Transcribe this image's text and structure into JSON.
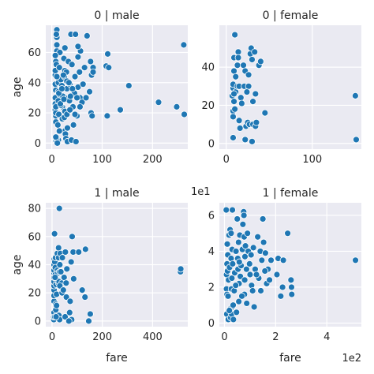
{
  "chart_data": [
    {
      "type": "scatter",
      "title": "0 | male",
      "xlabel": "",
      "ylabel": "age",
      "xlim": [
        -12,
        270
      ],
      "ylim": [
        -4,
        78
      ],
      "xticks": [
        0,
        100,
        200
      ],
      "xtick_labels": [
        "0",
        "100",
        "200"
      ],
      "yticks": [
        0,
        20,
        40,
        60
      ],
      "ytick_labels": [
        "0",
        "20",
        "40",
        "60"
      ],
      "x_offset_label": "",
      "y_offset_label": "",
      "grid": true,
      "points": [
        [
          7,
          22
        ],
        [
          8,
          35
        ],
        [
          8,
          54
        ],
        [
          8,
          2
        ],
        [
          8,
          27
        ],
        [
          7,
          39
        ],
        [
          13,
          2
        ],
        [
          8,
          14
        ],
        [
          8,
          18
        ],
        [
          8,
          20
        ],
        [
          7,
          30
        ],
        [
          7,
          45
        ],
        [
          9,
          52
        ],
        [
          10,
          61
        ],
        [
          10,
          70
        ],
        [
          10,
          75
        ],
        [
          10,
          65
        ],
        [
          7,
          48
        ],
        [
          7,
          26
        ],
        [
          8,
          24
        ],
        [
          13,
          34
        ],
        [
          13,
          40
        ],
        [
          14,
          19
        ],
        [
          13,
          28
        ],
        [
          15,
          50
        ],
        [
          16,
          60
        ],
        [
          16,
          32
        ],
        [
          18,
          42
        ],
        [
          20,
          38
        ],
        [
          21,
          16
        ],
        [
          21,
          24
        ],
        [
          24,
          56
        ],
        [
          25,
          44
        ],
        [
          26,
          48
        ],
        [
          26,
          63
        ],
        [
          26,
          30
        ],
        [
          26,
          21
        ],
        [
          26,
          8
        ],
        [
          27,
          6
        ],
        [
          28,
          3
        ],
        [
          29,
          47
        ],
        [
          30,
          36
        ],
        [
          30,
          41
        ],
        [
          31,
          1
        ],
        [
          31,
          10
        ],
        [
          33,
          54
        ],
        [
          35,
          28
        ],
        [
          36,
          39
        ],
        [
          38,
          72
        ],
        [
          39,
          2
        ],
        [
          40,
          52
        ],
        [
          42,
          24
        ],
        [
          45,
          33
        ],
        [
          46,
          44
        ],
        [
          47,
          72
        ],
        [
          48,
          1
        ],
        [
          50,
          18
        ],
        [
          52,
          57
        ],
        [
          52,
          37
        ],
        [
          55,
          47
        ],
        [
          56,
          30
        ],
        [
          57,
          61
        ],
        [
          60,
          27
        ],
        [
          62,
          39
        ],
        [
          65,
          50
        ],
        [
          68,
          30
        ],
        [
          70,
          71
        ],
        [
          75,
          34
        ],
        [
          77,
          54
        ],
        [
          78,
          20
        ],
        [
          79,
          45
        ],
        [
          80,
          18
        ],
        [
          82,
          50
        ],
        [
          82,
          47
        ],
        [
          110,
          18
        ],
        [
          108,
          51
        ],
        [
          111,
          59
        ],
        [
          113,
          50
        ],
        [
          136,
          22
        ],
        [
          153,
          38
        ],
        [
          212,
          27
        ],
        [
          248,
          24
        ],
        [
          262,
          65
        ],
        [
          263,
          19
        ],
        [
          7,
          58
        ],
        [
          9,
          3
        ],
        [
          8,
          4
        ],
        [
          11,
          0
        ],
        [
          12,
          12
        ],
        [
          15,
          8
        ],
        [
          18,
          25
        ],
        [
          22,
          31
        ],
        [
          23,
          45
        ],
        [
          25,
          17
        ],
        [
          30,
          19
        ],
        [
          34,
          40
        ],
        [
          36,
          22
        ],
        [
          37,
          31
        ],
        [
          41,
          36
        ],
        [
          43,
          12
        ],
        [
          46,
          19
        ],
        [
          50,
          30
        ],
        [
          52,
          64
        ],
        [
          56,
          24
        ],
        [
          9,
          72
        ],
        [
          10,
          44
        ],
        [
          14,
          33
        ],
        [
          17,
          26
        ],
        [
          20,
          36
        ],
        [
          24,
          29
        ]
      ]
    },
    {
      "type": "scatter",
      "title": "0 | female",
      "xlabel": "",
      "ylabel": "",
      "xlim": [
        -8,
        157
      ],
      "ylim": [
        -3,
        62
      ],
      "xticks": [
        0,
        100
      ],
      "xtick_labels": [
        "0",
        "100"
      ],
      "yticks": [
        0,
        20,
        40
      ],
      "ytick_labels": [
        "0",
        "20",
        "40"
      ],
      "x_offset_label": "",
      "y_offset_label": "",
      "grid": true,
      "points": [
        [
          7,
          25
        ],
        [
          8,
          17
        ],
        [
          8,
          29
        ],
        [
          8,
          31
        ],
        [
          8,
          14
        ],
        [
          8,
          3
        ],
        [
          9,
          38
        ],
        [
          9,
          22
        ],
        [
          9,
          45
        ],
        [
          10,
          57
        ],
        [
          10,
          18
        ],
        [
          11,
          27
        ],
        [
          13,
          41
        ],
        [
          13,
          30
        ],
        [
          14,
          48
        ],
        [
          14,
          45
        ],
        [
          15,
          30
        ],
        [
          16,
          8
        ],
        [
          17,
          24
        ],
        [
          18,
          21
        ],
        [
          20,
          41
        ],
        [
          21,
          30
        ],
        [
          22,
          2
        ],
        [
          22,
          38
        ],
        [
          23,
          9
        ],
        [
          25,
          11
        ],
        [
          26,
          30
        ],
        [
          26,
          36
        ],
        [
          27,
          10
        ],
        [
          28,
          47
        ],
        [
          29,
          50
        ],
        [
          30,
          1
        ],
        [
          30,
          44
        ],
        [
          31,
          10
        ],
        [
          31,
          22
        ],
        [
          33,
          48
        ],
        [
          34,
          9
        ],
        [
          34,
          26
        ],
        [
          35,
          11
        ],
        [
          38,
          41
        ],
        [
          40,
          43
        ],
        [
          45,
          16
        ],
        [
          150,
          25
        ],
        [
          151,
          2
        ],
        [
          9,
          26
        ],
        [
          11,
          35
        ],
        [
          15,
          12
        ],
        [
          24,
          27
        ]
      ]
    },
    {
      "type": "scatter",
      "title": "1 | male",
      "xlabel": "fare",
      "ylabel": "age",
      "xlim": [
        -25,
        540
      ],
      "ylim": [
        -4,
        84
      ],
      "xticks": [
        0,
        200,
        400
      ],
      "xtick_labels": [
        "0",
        "200",
        "400"
      ],
      "yticks": [
        0,
        20,
        40,
        60,
        80
      ],
      "ytick_labels": [
        "0",
        "20",
        "40",
        "60",
        "80"
      ],
      "x_offset_label": "",
      "y_offset_label": "",
      "grid": true,
      "points": [
        [
          7,
          1
        ],
        [
          7,
          3
        ],
        [
          8,
          6
        ],
        [
          8,
          14
        ],
        [
          8,
          18
        ],
        [
          8,
          22
        ],
        [
          8,
          25
        ],
        [
          8,
          28
        ],
        [
          8,
          31
        ],
        [
          8,
          34
        ],
        [
          8,
          36
        ],
        [
          8,
          40
        ],
        [
          9,
          44
        ],
        [
          10,
          62
        ],
        [
          11,
          42
        ],
        [
          13,
          33
        ],
        [
          13,
          38
        ],
        [
          14,
          45
        ],
        [
          15,
          8
        ],
        [
          15,
          12
        ],
        [
          16,
          26
        ],
        [
          18,
          19
        ],
        [
          20,
          29
        ],
        [
          21,
          48
        ],
        [
          22,
          36
        ],
        [
          24,
          34
        ],
        [
          26,
          27
        ],
        [
          26,
          52
        ],
        [
          26,
          45
        ],
        [
          27,
          4
        ],
        [
          28,
          28
        ],
        [
          29,
          80
        ],
        [
          30,
          1
        ],
        [
          30,
          35
        ],
        [
          31,
          40
        ],
        [
          33,
          48
        ],
        [
          35,
          35
        ],
        [
          39,
          27
        ],
        [
          40,
          20
        ],
        [
          41,
          45
        ],
        [
          48,
          31
        ],
        [
          52,
          3
        ],
        [
          53,
          49
        ],
        [
          56,
          27
        ],
        [
          57,
          17
        ],
        [
          59,
          37
        ],
        [
          70,
          6
        ],
        [
          72,
          14
        ],
        [
          76,
          42
        ],
        [
          78,
          1
        ],
        [
          80,
          60
        ],
        [
          84,
          49
        ],
        [
          86,
          30
        ],
        [
          106,
          49
        ],
        [
          120,
          22
        ],
        [
          131,
          17
        ],
        [
          133,
          51
        ],
        [
          146,
          0
        ],
        [
          152,
          5
        ],
        [
          511,
          35
        ],
        [
          512,
          37
        ],
        [
          11,
          3
        ],
        [
          12,
          31
        ],
        [
          16,
          3
        ],
        [
          18,
          11
        ],
        [
          31,
          25
        ],
        [
          45,
          22
        ],
        [
          67,
          0
        ]
      ]
    },
    {
      "type": "scatter",
      "title": "1 | female",
      "xlabel": "fare",
      "ylabel": "",
      "xlim": [
        -0.2,
        5.35
      ],
      "ylim": [
        -0.2,
        6.7
      ],
      "xticks": [
        0,
        2,
        4
      ],
      "xtick_labels": [
        "0",
        "2",
        "4"
      ],
      "yticks": [
        0,
        2,
        4,
        6
      ],
      "ytick_labels": [
        "0",
        "2",
        "4",
        "6"
      ],
      "x_offset_label": "1e2",
      "y_offset_label": "1e1",
      "grid": true,
      "points": [
        [
          0.07,
          6.3
        ],
        [
          0.08,
          2.7
        ],
        [
          0.08,
          1.9
        ],
        [
          0.09,
          0.5
        ],
        [
          0.1,
          3.3
        ],
        [
          0.1,
          1.6
        ],
        [
          0.11,
          4.4
        ],
        [
          0.12,
          2.9
        ],
        [
          0.13,
          3.8
        ],
        [
          0.14,
          1.5
        ],
        [
          0.15,
          0.2
        ],
        [
          0.16,
          2.4
        ],
        [
          0.18,
          4.9
        ],
        [
          0.2,
          3.1
        ],
        [
          0.22,
          5.2
        ],
        [
          0.23,
          0.8
        ],
        [
          0.24,
          0.3
        ],
        [
          0.26,
          3.6
        ],
        [
          0.26,
          5.0
        ],
        [
          0.27,
          1.9
        ],
        [
          0.28,
          0.5
        ],
        [
          0.29,
          2.5
        ],
        [
          0.3,
          4.1
        ],
        [
          0.3,
          0.9
        ],
        [
          0.32,
          3.3
        ],
        [
          0.35,
          0.2
        ],
        [
          0.38,
          1.8
        ],
        [
          0.4,
          2.8
        ],
        [
          0.45,
          4.0
        ],
        [
          0.5,
          5.8
        ],
        [
          0.52,
          3.6
        ],
        [
          0.53,
          3.0
        ],
        [
          0.55,
          4.5
        ],
        [
          0.56,
          1.2
        ],
        [
          0.57,
          2.2
        ],
        [
          0.6,
          4.9
        ],
        [
          0.62,
          2.6
        ],
        [
          0.65,
          3.2
        ],
        [
          0.7,
          4.1
        ],
        [
          0.72,
          5.5
        ],
        [
          0.75,
          6.2
        ],
        [
          0.76,
          6.0
        ],
        [
          0.77,
          4.8
        ],
        [
          0.78,
          1.6
        ],
        [
          0.79,
          2.4
        ],
        [
          0.8,
          3.7
        ],
        [
          0.82,
          4.3
        ],
        [
          0.86,
          3.0
        ],
        [
          0.9,
          5.0
        ],
        [
          0.93,
          4.0
        ],
        [
          1.0,
          2.7
        ],
        [
          1.04,
          3.8
        ],
        [
          1.06,
          2.1
        ],
        [
          1.1,
          1.8
        ],
        [
          1.13,
          4.2
        ],
        [
          1.2,
          3.0
        ],
        [
          1.3,
          4.8
        ],
        [
          1.34,
          2.5
        ],
        [
          1.4,
          4.0
        ],
        [
          1.46,
          3.5
        ],
        [
          1.5,
          5.8
        ],
        [
          1.53,
          4.5
        ],
        [
          1.6,
          3.9
        ],
        [
          1.65,
          2.2
        ],
        [
          1.7,
          3.0
        ],
        [
          1.76,
          2.4
        ],
        [
          1.82,
          3.5
        ],
        [
          2.1,
          3.6
        ],
        [
          2.2,
          1.5
        ],
        [
          2.27,
          2.0
        ],
        [
          2.3,
          3.5
        ],
        [
          2.47,
          5.0
        ],
        [
          2.6,
          2.4
        ],
        [
          2.62,
          2.0
        ],
        [
          2.63,
          1.6
        ],
        [
          5.12,
          3.5
        ],
        [
          0.34,
          1.0
        ],
        [
          0.44,
          2.1
        ],
        [
          0.58,
          3.4
        ],
        [
          0.68,
          1.5
        ],
        [
          0.87,
          1.1
        ],
        [
          0.98,
          3.3
        ],
        [
          1.16,
          0.9
        ],
        [
          1.25,
          2.7
        ],
        [
          1.42,
          1.8
        ],
        [
          1.58,
          2.9
        ],
        [
          2.05,
          2.7
        ],
        [
          0.19,
          0.7
        ],
        [
          0.31,
          6.3
        ],
        [
          0.47,
          0.6
        ]
      ]
    }
  ]
}
